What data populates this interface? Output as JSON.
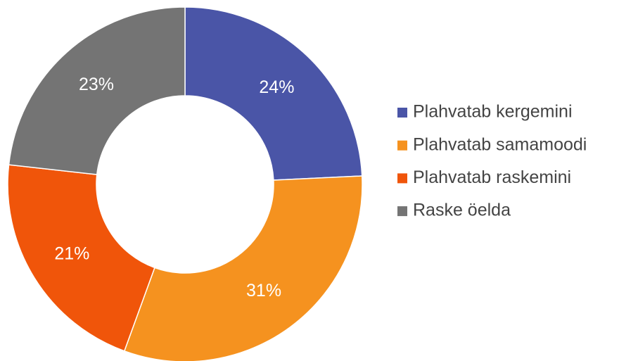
{
  "chart_data": {
    "type": "pie",
    "categories": [
      "Plahvatab kergemini",
      "Plahvatab samamoodi",
      "Plahvatab raskemini",
      "Raske öelda"
    ],
    "values": [
      24,
      31,
      21,
      23
    ],
    "value_labels": [
      "24%",
      "31%",
      "21%",
      "23%"
    ],
    "colors": [
      "#4a55a7",
      "#f5921f",
      "#f0550a",
      "#747474"
    ],
    "donut": true,
    "legend": "right"
  }
}
